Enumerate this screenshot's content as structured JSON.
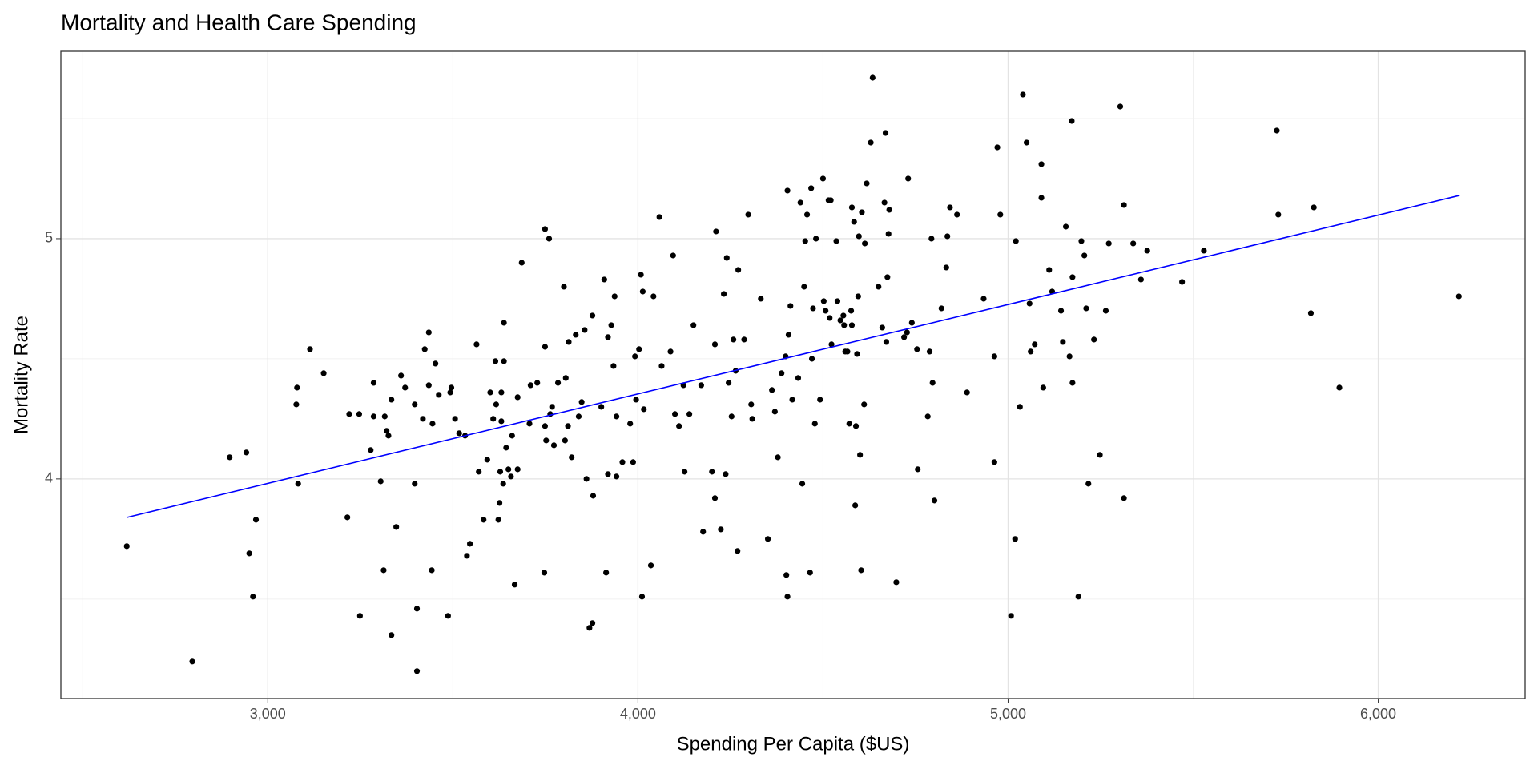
{
  "chart_data": {
    "type": "scatter",
    "title": "Mortality and Health Care Spending",
    "x_label": "Spending Per Capita ($US)",
    "y_label": "Mortality Rate",
    "xlim": [
      2441,
      6397
    ],
    "ylim": [
      3.086,
      5.78
    ],
    "xticks": [
      {
        "value": 3000,
        "label": "3,000"
      },
      {
        "value": 4000,
        "label": "4,000"
      },
      {
        "value": 5000,
        "label": "5,000"
      },
      {
        "value": 6000,
        "label": "6,000"
      }
    ],
    "yticks": [
      4,
      5
    ],
    "grid": true,
    "color": "#000000",
    "x": [
      2619,
      2796,
      2897,
      2942,
      2950,
      2960,
      2968,
      3079,
      3077,
      3082,
      3114,
      3151,
      3215,
      3220,
      3247,
      3249,
      3278,
      3286,
      3286,
      3305,
      3313,
      3316,
      3321,
      3326,
      3334,
      3334,
      3347,
      3360,
      3371,
      3397,
      3397,
      3403,
      3403,
      3419,
      3424,
      3435,
      3435,
      3443,
      3445,
      3453,
      3462,
      3487,
      3493,
      3496,
      3506,
      3517,
      3533,
      3538,
      3546,
      3564,
      3570,
      3583,
      3593,
      3601,
      3609,
      3615,
      3617,
      3623,
      3626,
      3628,
      3631,
      3631,
      3636,
      3638,
      3638,
      3644,
      3650,
      3657,
      3660,
      3667,
      3675,
      3675,
      3686,
      3707,
      3710,
      3728,
      3747,
      3749,
      3749,
      3749,
      3752,
      3760,
      3763,
      3768,
      3773,
      3784,
      3800,
      3803,
      3805,
      3811,
      3813,
      3821,
      3832,
      3840,
      3848,
      3856,
      3861,
      3869,
      3877,
      3877,
      3879,
      3901,
      3909,
      3914,
      3919,
      3919,
      3928,
      3934,
      3937,
      3942,
      3942,
      3958,
      3979,
      3987,
      3992,
      3995,
      4003,
      4008,
      4011,
      4013,
      4016,
      4035,
      4042,
      4058,
      4064,
      4088,
      4095,
      4100,
      4111,
      4123,
      4126,
      4139,
      4150,
      4171,
      4176,
      4200,
      4208,
      4208,
      4211,
      4224,
      4232,
      4237,
      4240,
      4245,
      4253,
      4258,
      4264,
      4269,
      4271,
      4287,
      4298,
      4306,
      4309,
      4332,
      4351,
      4362,
      4370,
      4378,
      4388,
      4399,
      4401,
      4404,
      4404,
      4407,
      4412,
      4417,
      4433,
      4439,
      4444,
      4449,
      4452,
      4457,
      4465,
      4468,
      4470,
      4473,
      4478,
      4481,
      4492,
      4500,
      4502,
      4507,
      4515,
      4518,
      4521,
      4523,
      4536,
      4539,
      4547,
      4555,
      4557,
      4560,
      4566,
      4571,
      4576,
      4578,
      4578,
      4584,
      4587,
      4589,
      4592,
      4595,
      4597,
      4600,
      4603,
      4605,
      4611,
      4613,
      4618,
      4629,
      4634,
      4650,
      4660,
      4666,
      4669,
      4671,
      4674,
      4677,
      4679,
      4698,
      4719,
      4727,
      4730,
      4740,
      4754,
      4756,
      4783,
      4788,
      4793,
      4796,
      4801,
      4820,
      4833,
      4836,
      4843,
      4862,
      4889,
      4934,
      4963,
      4963,
      4971,
      4979,
      5008,
      5019,
      5021,
      5032,
      5040,
      5050,
      5058,
      5061,
      5072,
      5090,
      5090,
      5095,
      5111,
      5119,
      5143,
      5148,
      5156,
      5166,
      5172,
      5174,
      5174,
      5190,
      5198,
      5206,
      5211,
      5217,
      5232,
      5248,
      5264,
      5272,
      5303,
      5313,
      5313,
      5338,
      5359,
      5376,
      5470,
      5529,
      5726,
      5730,
      5818,
      5826,
      5895,
      6218
    ],
    "y": [
      3.72,
      3.24,
      4.09,
      4.11,
      3.69,
      3.51,
      3.83,
      4.38,
      4.31,
      3.98,
      4.54,
      4.44,
      3.84,
      4.27,
      4.27,
      3.43,
      4.12,
      4.4,
      4.26,
      3.99,
      3.62,
      4.26,
      4.2,
      4.18,
      4.33,
      3.35,
      3.8,
      4.43,
      4.38,
      4.31,
      3.98,
      3.46,
      3.2,
      4.25,
      4.54,
      4.61,
      4.39,
      3.62,
      4.23,
      4.48,
      4.35,
      3.43,
      4.36,
      4.38,
      4.25,
      4.19,
      4.18,
      3.68,
      3.73,
      4.56,
      4.03,
      3.83,
      4.08,
      4.36,
      4.25,
      4.49,
      4.31,
      3.83,
      3.9,
      4.03,
      4.24,
      4.36,
      3.98,
      4.49,
      4.65,
      4.13,
      4.04,
      4.01,
      4.18,
      3.56,
      4.04,
      4.34,
      4.9,
      4.23,
      4.39,
      4.4,
      3.61,
      4.55,
      5.04,
      4.22,
      4.16,
      5.0,
      4.27,
      4.3,
      4.14,
      4.4,
      4.8,
      4.16,
      4.42,
      4.22,
      4.57,
      4.09,
      4.6,
      4.26,
      4.32,
      4.62,
      4.0,
      3.38,
      3.4,
      4.68,
      3.93,
      4.3,
      4.83,
      3.61,
      4.02,
      4.59,
      4.64,
      4.47,
      4.76,
      4.26,
      4.01,
      4.07,
      4.23,
      4.07,
      4.51,
      4.33,
      4.54,
      4.85,
      3.51,
      4.78,
      4.29,
      3.64,
      4.76,
      5.09,
      4.47,
      4.53,
      4.93,
      4.27,
      4.22,
      4.39,
      4.03,
      4.27,
      4.64,
      4.39,
      3.78,
      4.03,
      4.56,
      3.92,
      5.03,
      3.79,
      4.77,
      4.02,
      4.92,
      4.4,
      4.26,
      4.58,
      4.45,
      3.7,
      4.87,
      4.58,
      5.1,
      4.31,
      4.25,
      4.75,
      3.75,
      4.37,
      4.28,
      4.09,
      4.44,
      4.51,
      3.6,
      5.2,
      3.51,
      4.6,
      4.72,
      4.33,
      4.42,
      5.15,
      3.98,
      4.8,
      4.99,
      5.1,
      3.61,
      5.21,
      4.5,
      4.71,
      4.23,
      5.0,
      4.33,
      5.25,
      4.74,
      4.7,
      5.16,
      4.67,
      5.16,
      4.56,
      4.99,
      4.74,
      4.66,
      4.68,
      4.64,
      4.53,
      4.53,
      4.23,
      4.7,
      4.64,
      5.13,
      5.07,
      3.89,
      4.22,
      4.52,
      4.76,
      5.01,
      4.1,
      3.62,
      5.11,
      4.31,
      4.98,
      5.23,
      5.4,
      5.67,
      4.8,
      4.63,
      5.15,
      5.44,
      4.57,
      4.84,
      5.02,
      5.12,
      3.57,
      4.59,
      4.61,
      5.25,
      4.65,
      4.54,
      4.04,
      4.26,
      4.53,
      5.0,
      4.4,
      3.91,
      4.71,
      4.88,
      5.01,
      5.13,
      5.1,
      4.36,
      4.75,
      4.07,
      4.51,
      5.38,
      5.1,
      3.43,
      3.75,
      4.99,
      4.3,
      5.6,
      5.4,
      4.73,
      4.53,
      4.56,
      5.31,
      5.17,
      4.38,
      4.87,
      4.78,
      4.7,
      4.57,
      5.05,
      4.51,
      5.49,
      4.84,
      4.4,
      3.51,
      4.99,
      4.93,
      4.71,
      3.98,
      4.58,
      4.1,
      4.7,
      4.98,
      5.55,
      5.14,
      3.92,
      4.98,
      4.83,
      4.95,
      4.82,
      4.95,
      5.45,
      5.1,
      4.69,
      5.13,
      4.38,
      4.76
    ],
    "fit": {
      "x": [
        2620,
        6220
      ],
      "y": [
        3.84,
        5.18
      ],
      "color": "#0000ff"
    }
  }
}
